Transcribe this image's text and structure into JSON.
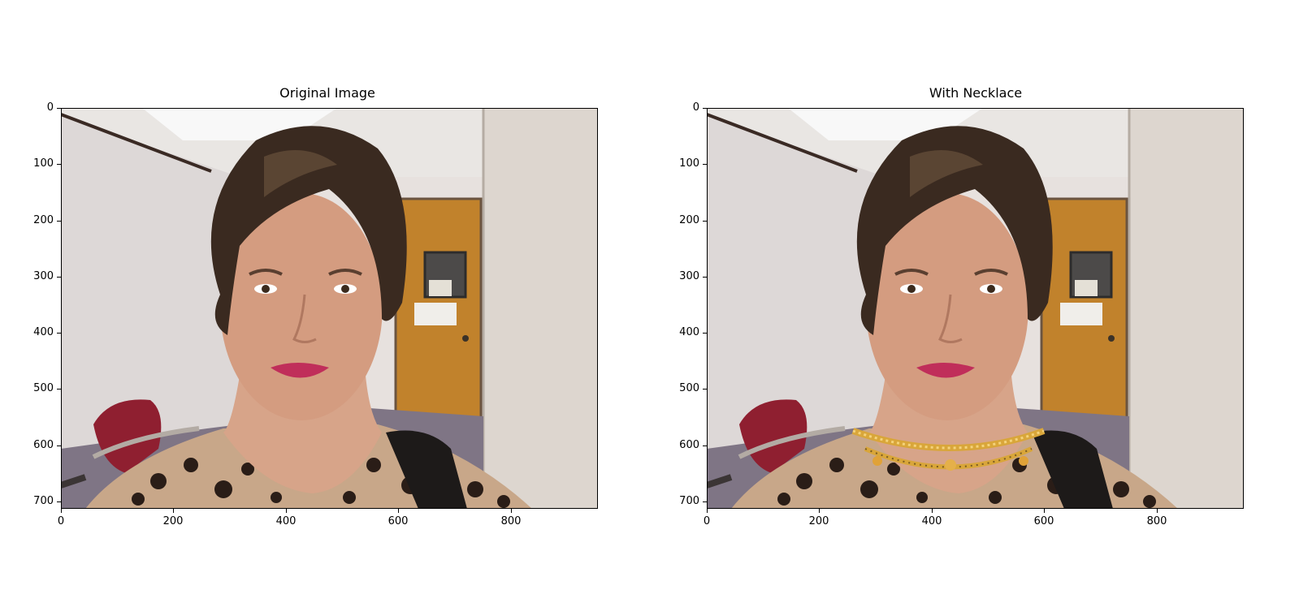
{
  "figure": {
    "panels": [
      {
        "title": "Original Image",
        "necklace": false,
        "x_ticks": [
          "0",
          "200",
          "400",
          "600",
          "800"
        ],
        "y_ticks": [
          "0",
          "100",
          "200",
          "300",
          "400",
          "500",
          "600",
          "700"
        ]
      },
      {
        "title": "With Necklace",
        "necklace": true,
        "x_ticks": [
          "0",
          "200",
          "400",
          "600",
          "800"
        ],
        "y_ticks": [
          "0",
          "100",
          "200",
          "300",
          "400",
          "500",
          "600",
          "700"
        ]
      }
    ]
  },
  "colors": {
    "wall": "#e7e1de",
    "ceiling": "#e9e6e3",
    "door": "#c1822c",
    "hair": "#3a2a20",
    "skin": "#d49c80",
    "lips": "#c02e5a",
    "chair": "#8f1f30",
    "floor": "#7f7585",
    "necklace": "#d9a63a"
  }
}
